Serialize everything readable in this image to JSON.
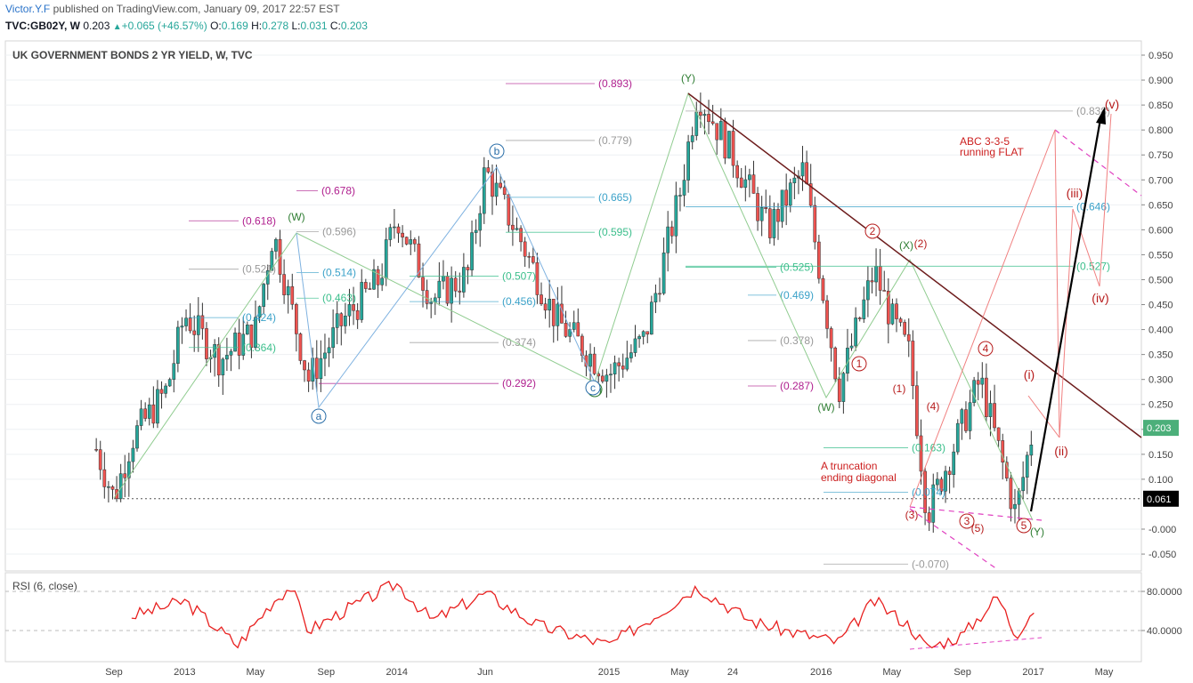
{
  "header": {
    "author": "Victor.Y.F",
    "published": "published on TradingView.com, January 09, 2017 22:57 EST",
    "symbol": "TVC:GB02Y, W",
    "last": "0.203",
    "change_icon": "triangle-up-icon",
    "change": "+0.065 (+46.57%)",
    "o_label": "O:",
    "o": "0.169",
    "h_label": "H:",
    "h": "0.278",
    "l_label": "L:",
    "l": "0.031",
    "c_label": "C:",
    "c": "0.203"
  },
  "chart_data": [
    {
      "type": "candlestick",
      "title": "UK GOVERNMENT BONDS 2 YR YIELD, W, TVC",
      "interval": "W",
      "ylim": [
        -0.07,
        0.95
      ],
      "yticks": [
        "0.950",
        "0.900",
        "0.850",
        "0.800",
        "0.750",
        "0.700",
        "0.650",
        "0.600",
        "0.550",
        "0.500",
        "0.450",
        "0.400",
        "0.350",
        "0.300",
        "0.250",
        "0.200",
        "0.150",
        "0.100",
        "-0.000",
        "-0.050"
      ],
      "xticks": [
        "Sep",
        "2013",
        "May",
        "Sep",
        "2014",
        "Jun",
        "2015",
        "May",
        "24",
        "2016",
        "May",
        "Sep",
        "2017",
        "May"
      ],
      "last_price": "0.203",
      "marked_level": "0.061",
      "anchor_points": [
        {
          "x": "2012-08",
          "y": 0.16
        },
        {
          "x": "2012-09",
          "y": 0.061
        },
        {
          "x": "2012-10",
          "y": 0.18
        },
        {
          "x": "2012-12",
          "y": 0.28
        },
        {
          "x": "2013-01",
          "y": 0.43
        },
        {
          "x": "2013-03",
          "y": 0.34
        },
        {
          "x": "2013-05",
          "y": 0.4
        },
        {
          "x": "2013-06",
          "y": 0.596
        },
        {
          "x": "2013-08",
          "y": 0.3
        },
        {
          "x": "2013-10",
          "y": 0.42
        },
        {
          "x": "2013-12",
          "y": 0.5
        },
        {
          "x": "2014-01",
          "y": 0.63
        },
        {
          "x": "2014-03",
          "y": 0.46
        },
        {
          "x": "2014-05",
          "y": 0.51
        },
        {
          "x": "2014-06",
          "y": 0.72
        },
        {
          "x": "2014-08",
          "y": 0.58
        },
        {
          "x": "2014-10",
          "y": 0.42
        },
        {
          "x": "2015-01",
          "y": 0.31
        },
        {
          "x": "2015-03",
          "y": 0.38
        },
        {
          "x": "2015-05",
          "y": 0.67
        },
        {
          "x": "2015-06",
          "y": 0.875
        },
        {
          "x": "2015-08",
          "y": 0.75
        },
        {
          "x": "2015-10",
          "y": 0.6
        },
        {
          "x": "2015-12",
          "y": 0.72
        },
        {
          "x": "2016-02",
          "y": 0.28
        },
        {
          "x": "2016-04",
          "y": 0.52
        },
        {
          "x": "2016-05",
          "y": 0.42
        },
        {
          "x": "2016-06",
          "y": 0.35
        },
        {
          "x": "2016-07",
          "y": 0.03
        },
        {
          "x": "2016-08",
          "y": 0.12
        },
        {
          "x": "2016-10",
          "y": 0.3
        },
        {
          "x": "2016-12",
          "y": 0.03
        },
        {
          "x": "2017-01",
          "y": 0.203
        }
      ],
      "levels": [
        {
          "label": "(0.893)",
          "value": 0.893,
          "color": "#b0208f"
        },
        {
          "label": "(0.838)",
          "value": 0.838,
          "color": "#999999"
        },
        {
          "label": "(0.779)",
          "value": 0.779,
          "color": "#999999"
        },
        {
          "label": "(0.678)",
          "value": 0.678,
          "color": "#b0208f"
        },
        {
          "label": "(0.665)",
          "value": 0.665,
          "color": "#3ba2c9"
        },
        {
          "label": "(0.646)",
          "value": 0.646,
          "color": "#3ba2c9"
        },
        {
          "label": "(0.618)",
          "value": 0.618,
          "color": "#b0208f"
        },
        {
          "label": "(0.596)",
          "value": 0.596,
          "color": "#999999"
        },
        {
          "label": "(0.595)",
          "value": 0.595,
          "color": "#3cbf8c"
        },
        {
          "label": "(0.527)",
          "value": 0.527,
          "color": "#3cbf8c"
        },
        {
          "label": "(0.525)",
          "value": 0.525,
          "color": "#3cbf8c"
        },
        {
          "label": "(0.521)",
          "value": 0.521,
          "color": "#999999"
        },
        {
          "label": "(0.514)",
          "value": 0.514,
          "color": "#3ba2c9"
        },
        {
          "label": "(0.507)",
          "value": 0.507,
          "color": "#3cbf8c"
        },
        {
          "label": "(0.469)",
          "value": 0.469,
          "color": "#3ba2c9"
        },
        {
          "label": "(0.463)",
          "value": 0.463,
          "color": "#3cbf8c"
        },
        {
          "label": "(0.456)",
          "value": 0.456,
          "color": "#3ba2c9"
        },
        {
          "label": "(0.424)",
          "value": 0.424,
          "color": "#3ba2c9"
        },
        {
          "label": "(0.378)",
          "value": 0.378,
          "color": "#999999"
        },
        {
          "label": "(0.374)",
          "value": 0.374,
          "color": "#999999"
        },
        {
          "label": "(0.364)",
          "value": 0.364,
          "color": "#3cbf8c"
        },
        {
          "label": "(0.292)",
          "value": 0.292,
          "color": "#b0208f"
        },
        {
          "label": "(0.287)",
          "value": 0.287,
          "color": "#b0208f"
        },
        {
          "label": "(0.163)",
          "value": 0.163,
          "color": "#3cbf8c"
        },
        {
          "label": "(0.074)",
          "value": 0.074,
          "color": "#3ba2c9"
        },
        {
          "label": "(-0.070)",
          "value": -0.07,
          "color": "#999999"
        }
      ],
      "wave_labels": [
        "(W)",
        "(X)",
        "(Y)",
        "(W)",
        "(X)",
        "(2)",
        "(Y)",
        "a",
        "b",
        "c",
        "1",
        "2",
        "3",
        "4",
        "5",
        "(1)",
        "(3)",
        "(4)",
        "(5)",
        "(i)",
        "(ii)",
        "(iii)",
        "(iv)",
        "(v)"
      ],
      "annotations": [
        "ABC 3-3-5 running FLAT",
        "A truncation ending diagonal"
      ],
      "colors": {
        "up": "#26a69a",
        "down": "#ef5350",
        "trendline": "#6d1c1c",
        "projection": "#000000",
        "accent": "#cc1f1f"
      }
    },
    {
      "type": "line",
      "title": "RSI (6, close)",
      "ylim": [
        20,
        95
      ],
      "yticks": [
        "80.0000",
        "40.0000"
      ],
      "color": "#e8201f",
      "anchor_points": [
        {
          "x": "2012-10",
          "y": 55
        },
        {
          "x": "2013-01",
          "y": 70
        },
        {
          "x": "2013-03",
          "y": 40
        },
        {
          "x": "2013-04",
          "y": 25
        },
        {
          "x": "2013-06",
          "y": 70
        },
        {
          "x": "2013-07",
          "y": 85
        },
        {
          "x": "2013-08",
          "y": 40
        },
        {
          "x": "2013-10",
          "y": 60
        },
        {
          "x": "2014-01",
          "y": 88
        },
        {
          "x": "2014-03",
          "y": 50
        },
        {
          "x": "2014-06",
          "y": 78
        },
        {
          "x": "2014-09",
          "y": 45
        },
        {
          "x": "2015-01",
          "y": 25
        },
        {
          "x": "2015-04",
          "y": 60
        },
        {
          "x": "2015-06",
          "y": 85
        },
        {
          "x": "2015-09",
          "y": 50
        },
        {
          "x": "2015-11",
          "y": 40
        },
        {
          "x": "2016-02",
          "y": 28
        },
        {
          "x": "2016-04",
          "y": 70
        },
        {
          "x": "2016-06",
          "y": 45
        },
        {
          "x": "2016-07",
          "y": 22
        },
        {
          "x": "2016-09",
          "y": 35
        },
        {
          "x": "2016-11",
          "y": 75
        },
        {
          "x": "2016-12",
          "y": 35
        },
        {
          "x": "2017-01",
          "y": 62
        }
      ]
    }
  ]
}
